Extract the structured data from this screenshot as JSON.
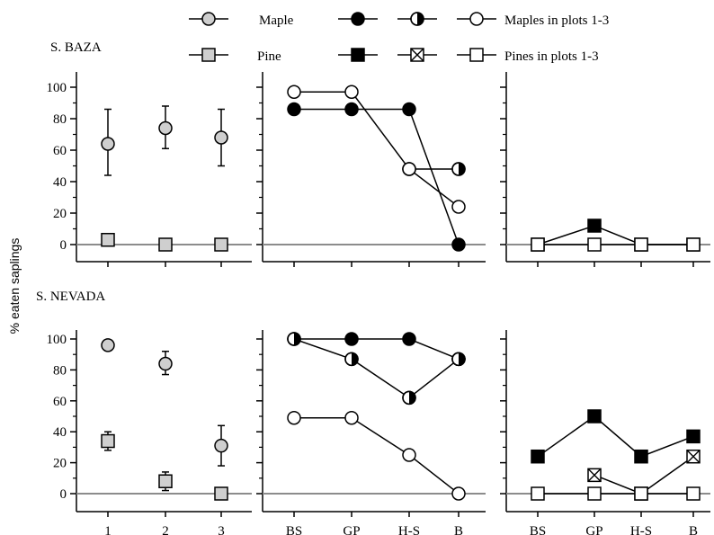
{
  "figure": {
    "ylabel": "% eaten saplings",
    "sections": [
      "S. BAZA",
      "S. NEVADA"
    ]
  },
  "legend": {
    "row1": {
      "label": "Maple",
      "label_plots": "Maples in plots 1-3"
    },
    "row2": {
      "label": "Pine",
      "label_plots": "Pines in plots 1-3"
    }
  },
  "colors": {
    "grey_fill": "#cfcfcf",
    "black": "#000000",
    "white": "#ffffff",
    "zero_line": "#8c8c8c"
  },
  "chart_data": [
    {
      "id": "baza-plots",
      "section": "S. BAZA",
      "type": "scatter",
      "categories": [
        "1",
        "2",
        "3"
      ],
      "ylim": [
        0,
        100
      ],
      "yticks": [
        0,
        20,
        40,
        60,
        80,
        100
      ],
      "series": [
        {
          "name": "Maple",
          "marker": "circle",
          "fill": "grey",
          "values": [
            64,
            74,
            68
          ],
          "err_low": [
            44,
            61,
            50
          ],
          "err_high": [
            86,
            88,
            86
          ]
        },
        {
          "name": "Pine",
          "marker": "square",
          "fill": "grey",
          "values": [
            3,
            0,
            0
          ]
        }
      ]
    },
    {
      "id": "baza-maples",
      "section": "S. BAZA",
      "type": "line",
      "categories": [
        "BS",
        "GP",
        "H-S",
        "B"
      ],
      "ylim": [
        0,
        100
      ],
      "yticks": [
        0,
        20,
        40,
        60,
        80,
        100
      ],
      "series": [
        {
          "marker": "circle",
          "fill": "black",
          "values": [
            86,
            86,
            86,
            0
          ]
        },
        {
          "marker": "circle",
          "fill": "half",
          "values": [
            null,
            null,
            48,
            48
          ]
        },
        {
          "marker": "circle",
          "fill": "white",
          "values": [
            97,
            97,
            48,
            24
          ]
        }
      ]
    },
    {
      "id": "baza-pines",
      "section": "S. BAZA",
      "type": "line",
      "categories": [
        "BS",
        "GP",
        "H-S",
        "B"
      ],
      "ylim": [
        0,
        100
      ],
      "yticks": [
        0,
        20,
        40,
        60,
        80,
        100
      ],
      "series": [
        {
          "marker": "square",
          "fill": "black",
          "values": [
            0,
            12,
            0,
            0
          ]
        },
        {
          "marker": "square",
          "fill": "white",
          "values": [
            0,
            0,
            0,
            0
          ]
        }
      ]
    },
    {
      "id": "nevada-plots",
      "section": "S. NEVADA",
      "type": "scatter",
      "categories": [
        "1",
        "2",
        "3"
      ],
      "ylim": [
        0,
        100
      ],
      "yticks": [
        0,
        20,
        40,
        60,
        80,
        100
      ],
      "series": [
        {
          "name": "Maple",
          "marker": "circle",
          "fill": "grey",
          "values": [
            96,
            84,
            31
          ],
          "err_low": [
            null,
            77,
            18
          ],
          "err_high": [
            null,
            92,
            44
          ]
        },
        {
          "name": "Pine",
          "marker": "square",
          "fill": "grey",
          "values": [
            34,
            8,
            0
          ],
          "err_low": [
            28,
            2,
            null
          ],
          "err_high": [
            40,
            14,
            null
          ]
        }
      ]
    },
    {
      "id": "nevada-maples",
      "section": "S. NEVADA",
      "type": "line",
      "categories": [
        "BS",
        "GP",
        "H-S",
        "B"
      ],
      "ylim": [
        0,
        100
      ],
      "yticks": [
        0,
        20,
        40,
        60,
        80,
        100
      ],
      "series": [
        {
          "marker": "circle",
          "fill": "black",
          "values": [
            100,
            100,
            100,
            87
          ]
        },
        {
          "marker": "circle",
          "fill": "half",
          "values": [
            100,
            87,
            62,
            87
          ]
        },
        {
          "marker": "circle",
          "fill": "white",
          "values": [
            49,
            49,
            25,
            0
          ]
        }
      ]
    },
    {
      "id": "nevada-pines",
      "section": "S. NEVADA",
      "type": "line",
      "categories": [
        "BS",
        "GP",
        "H-S",
        "B"
      ],
      "ylim": [
        0,
        100
      ],
      "yticks": [
        0,
        20,
        40,
        60,
        80,
        100
      ],
      "series": [
        {
          "marker": "square",
          "fill": "black",
          "values": [
            24,
            50,
            24,
            37
          ]
        },
        {
          "marker": "square",
          "fill": "crossed",
          "values": [
            null,
            12,
            0,
            24
          ]
        },
        {
          "marker": "square",
          "fill": "white",
          "values": [
            0,
            0,
            0,
            0
          ]
        }
      ]
    }
  ]
}
